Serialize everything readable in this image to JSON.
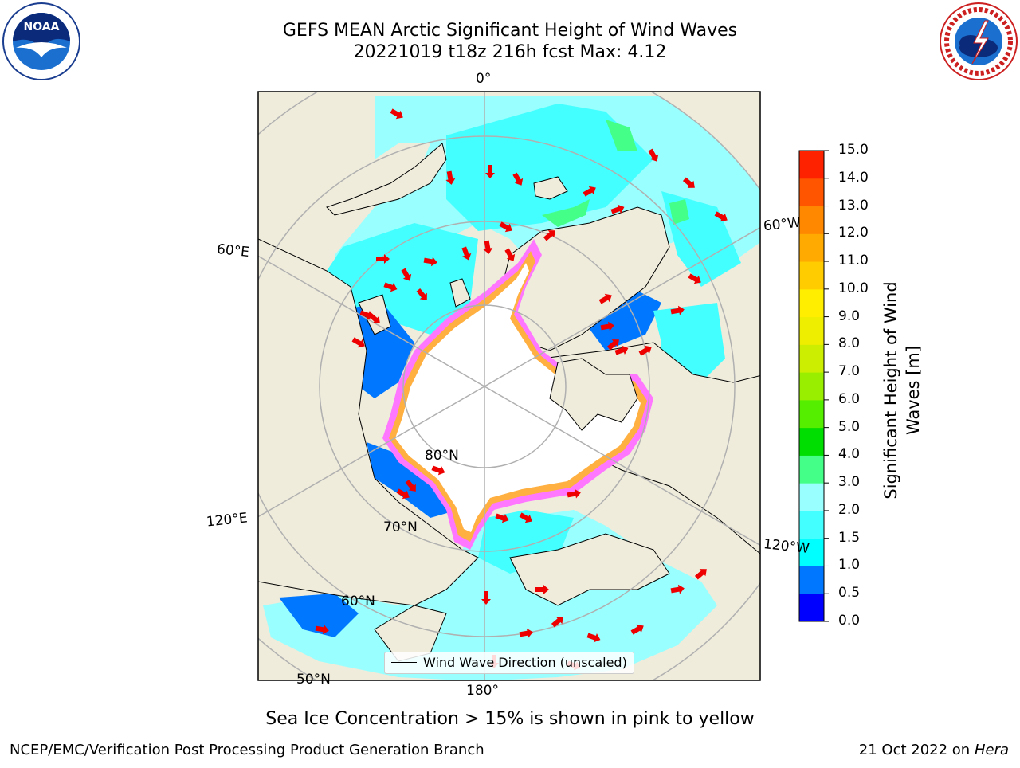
{
  "title": {
    "line1": "GEFS MEAN Arctic Significant Height of Wind Waves",
    "line2": "20221019 t18z 216h fcst   Max: 4.12"
  },
  "logos": {
    "left": {
      "name": "noaa-logo",
      "text": "NOAA"
    },
    "right": {
      "name": "nws-logo",
      "text": "NATIONAL WEATHER SERVICE"
    }
  },
  "map": {
    "meridian_labels": {
      "top": "0°",
      "left_upper": "60°E",
      "left_lower": "120°E",
      "bottom": "180°",
      "right_upper": "60°W",
      "right_lower": "120°W"
    },
    "parallel_labels": {
      "p80": "80°N",
      "p70": "70°N",
      "p60": "60°N",
      "p50": "50°N"
    },
    "legend_label": "Wind Wave Direction (unscaled)",
    "colors": {
      "land": "#efecdc",
      "ice": "#ffffff",
      "ice_edge_pink": "#ff77ff",
      "ice_edge_orange": "#ffb040",
      "grid": "#b0b0b0",
      "arrow": "#ee0000"
    }
  },
  "colorbar": {
    "label": "Significant Height of Wind Waves [m]",
    "ticks": [
      "0.0",
      "0.5",
      "1.0",
      "1.5",
      "2.0",
      "3.0",
      "4.0",
      "5.0",
      "6.0",
      "7.0",
      "8.0",
      "9.0",
      "10.0",
      "11.0",
      "12.0",
      "13.0",
      "14.0",
      "15.0"
    ],
    "colors": [
      "#0000ff",
      "#0077ff",
      "#00ffff",
      "#44ffff",
      "#99ffff",
      "#44ff88",
      "#00dd00",
      "#55ee00",
      "#99ee00",
      "#ccee00",
      "#eeee00",
      "#ffee00",
      "#ffcc00",
      "#ffaa00",
      "#ff8800",
      "#ff5500",
      "#ff2200"
    ]
  },
  "footer": {
    "note": "Sea Ice Concentration > 15% is shown in pink to yellow",
    "credit": "NCEP/EMC/Verification Post Processing Product Generation Branch",
    "date": "21 Oct 2022 on",
    "host": "Hera"
  }
}
